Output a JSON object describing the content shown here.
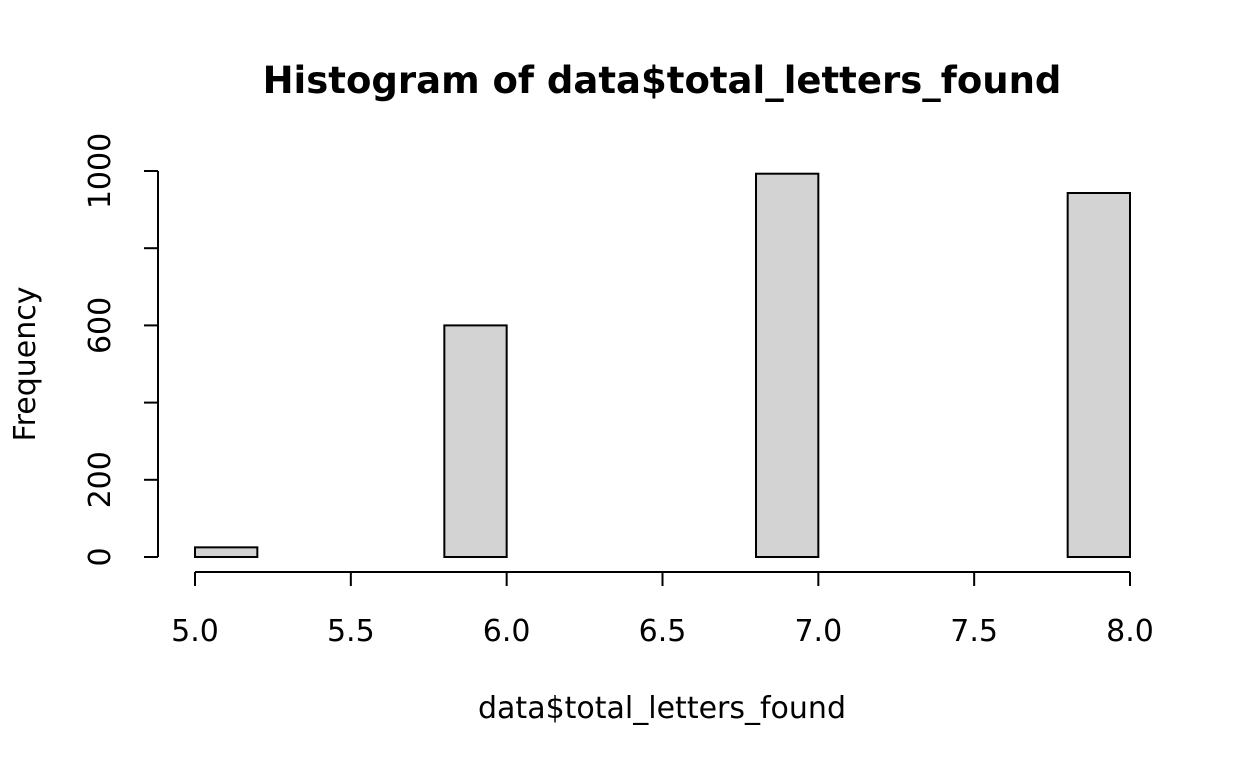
{
  "chart_data": {
    "type": "bar",
    "title": "Histogram of data$total_letters_found",
    "xlabel": "data$total_letters_found",
    "ylabel": "Frequency",
    "bins": [
      {
        "start": 5.0,
        "end": 5.2,
        "count": 25
      },
      {
        "start": 5.2,
        "end": 5.4,
        "count": 0
      },
      {
        "start": 5.4,
        "end": 5.6,
        "count": 0
      },
      {
        "start": 5.6,
        "end": 5.8,
        "count": 0
      },
      {
        "start": 5.8,
        "end": 6.0,
        "count": 600
      },
      {
        "start": 6.0,
        "end": 6.2,
        "count": 0
      },
      {
        "start": 6.2,
        "end": 6.4,
        "count": 0
      },
      {
        "start": 6.4,
        "end": 6.6,
        "count": 0
      },
      {
        "start": 6.6,
        "end": 6.8,
        "count": 0
      },
      {
        "start": 6.8,
        "end": 7.0,
        "count": 993
      },
      {
        "start": 7.0,
        "end": 7.2,
        "count": 0
      },
      {
        "start": 7.2,
        "end": 7.4,
        "count": 0
      },
      {
        "start": 7.4,
        "end": 7.6,
        "count": 0
      },
      {
        "start": 7.6,
        "end": 7.8,
        "count": 0
      },
      {
        "start": 7.8,
        "end": 8.0,
        "count": 943
      }
    ],
    "xlim": [
      5.0,
      8.0
    ],
    "ylim": [
      0,
      1000
    ],
    "x_ticks": [
      5.0,
      5.5,
      6.0,
      6.5,
      7.0,
      7.5,
      8.0
    ],
    "x_tick_labels": [
      "5.0",
      "5.5",
      "6.0",
      "6.5",
      "7.0",
      "7.5",
      "8.0"
    ],
    "y_ticks": [
      0,
      200,
      400,
      600,
      800,
      1000
    ],
    "y_tick_labels": [
      "0",
      "200",
      "",
      "600",
      "",
      "1000"
    ],
    "grid": false,
    "bar_color": "#d3d3d3",
    "edge_color": "#000000"
  }
}
